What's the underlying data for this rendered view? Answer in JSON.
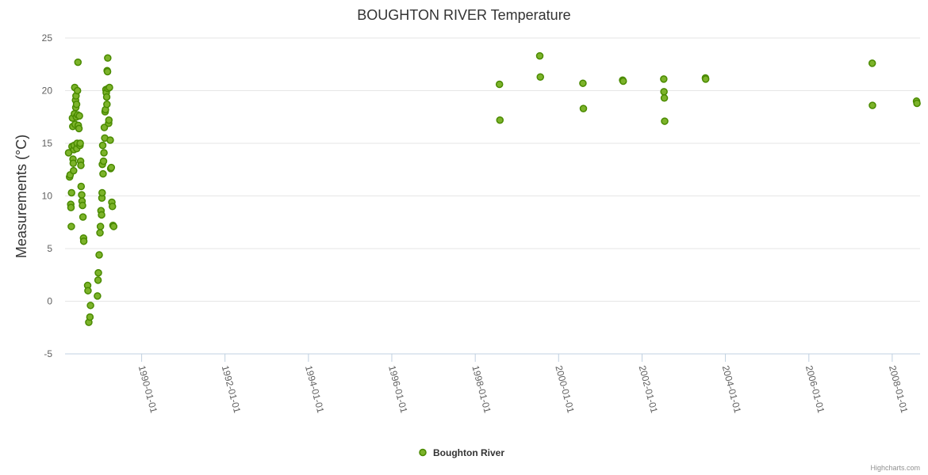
{
  "chart": {
    "title": "BOUGHTON RIVER Temperature",
    "credits": "Highcharts.com",
    "legend_position": "bottom-center",
    "colors": {
      "point_fill": "#7cb32a",
      "point_stroke": "#4a8a00",
      "grid": "#e6e6e6",
      "axis": "#c0d0e0"
    }
  },
  "chart_data": {
    "type": "scatter",
    "title": "BOUGHTON RIVER Temperature",
    "xlabel": "",
    "ylabel": "Measurements (°C)",
    "ylim": [
      -5,
      25
    ],
    "y_ticks": [
      -5,
      0,
      5,
      10,
      15,
      20,
      25
    ],
    "xlim": [
      "1988-03-01",
      "2008-09-01"
    ],
    "x_ticks": [
      "1990-01-01",
      "1992-01-01",
      "1994-01-01",
      "1996-01-01",
      "1998-01-01",
      "2000-01-01",
      "2002-01-01",
      "2004-01-01",
      "2006-01-01",
      "2008-01-01"
    ],
    "grid": true,
    "series": [
      {
        "name": "Boughton River",
        "points": [
          [
            "1988-04-01",
            14.1
          ],
          [
            "1988-04-10",
            11.8
          ],
          [
            "1988-04-15",
            12.0
          ],
          [
            "1988-04-20",
            9.2
          ],
          [
            "1988-04-22",
            8.9
          ],
          [
            "1988-04-25",
            7.1
          ],
          [
            "1988-04-27",
            10.3
          ],
          [
            "1988-05-01",
            14.7
          ],
          [
            "1988-05-05",
            17.4
          ],
          [
            "1988-05-08",
            16.6
          ],
          [
            "1988-05-10",
            13.5
          ],
          [
            "1988-05-12",
            13.1
          ],
          [
            "1988-05-15",
            12.4
          ],
          [
            "1988-05-18",
            14.4
          ],
          [
            "1988-05-20",
            14.8
          ],
          [
            "1988-05-22",
            17.8
          ],
          [
            "1988-05-25",
            20.3
          ],
          [
            "1988-05-28",
            16.8
          ],
          [
            "1988-06-01",
            19.1
          ],
          [
            "1988-06-03",
            18.4
          ],
          [
            "1988-06-05",
            19.5
          ],
          [
            "1988-06-08",
            17.5
          ],
          [
            "1988-06-10",
            18.7
          ],
          [
            "1988-06-12",
            14.5
          ],
          [
            "1988-06-15",
            15.0
          ],
          [
            "1988-06-18",
            20.0
          ],
          [
            "1988-06-20",
            17.7
          ],
          [
            "1988-06-22",
            22.7
          ],
          [
            "1988-06-25",
            16.7
          ],
          [
            "1988-07-01",
            16.4
          ],
          [
            "1988-07-05",
            17.6
          ],
          [
            "1988-07-10",
            14.8
          ],
          [
            "1988-07-12",
            15.0
          ],
          [
            "1988-07-15",
            13.3
          ],
          [
            "1988-07-18",
            12.9
          ],
          [
            "1988-07-20",
            10.9
          ],
          [
            "1988-07-25",
            10.1
          ],
          [
            "1988-07-28",
            9.5
          ],
          [
            "1988-08-01",
            9.1
          ],
          [
            "1988-08-05",
            8.0
          ],
          [
            "1988-08-10",
            6.0
          ],
          [
            "1988-08-12",
            5.7
          ],
          [
            "1988-09-15",
            1.5
          ],
          [
            "1988-09-18",
            1.0
          ],
          [
            "1988-09-25",
            -2.0
          ],
          [
            "1988-10-05",
            -1.5
          ],
          [
            "1988-10-10",
            -0.4
          ],
          [
            "1988-12-10",
            0.5
          ],
          [
            "1988-12-15",
            2.0
          ],
          [
            "1988-12-18",
            2.7
          ],
          [
            "1988-12-25",
            4.4
          ],
          [
            "1989-01-01",
            6.5
          ],
          [
            "1989-01-05",
            7.1
          ],
          [
            "1989-01-10",
            8.6
          ],
          [
            "1989-01-15",
            8.2
          ],
          [
            "1989-01-18",
            9.8
          ],
          [
            "1989-01-20",
            10.3
          ],
          [
            "1989-01-22",
            13.0
          ],
          [
            "1989-01-25",
            14.8
          ],
          [
            "1989-01-28",
            12.1
          ],
          [
            "1989-02-01",
            13.3
          ],
          [
            "1989-02-05",
            14.1
          ],
          [
            "1989-02-08",
            16.5
          ],
          [
            "1989-02-12",
            15.5
          ],
          [
            "1989-02-15",
            18.0
          ],
          [
            "1989-02-18",
            18.2
          ],
          [
            "1989-02-22",
            20.1
          ],
          [
            "1989-02-25",
            19.8
          ],
          [
            "1989-03-01",
            19.4
          ],
          [
            "1989-03-03",
            18.7
          ],
          [
            "1989-03-05",
            21.9
          ],
          [
            "1989-03-08",
            21.8
          ],
          [
            "1989-03-10",
            23.1
          ],
          [
            "1989-03-12",
            20.2
          ],
          [
            "1989-03-18",
            16.9
          ],
          [
            "1989-03-20",
            17.2
          ],
          [
            "1989-03-25",
            20.3
          ],
          [
            "1989-04-01",
            15.3
          ],
          [
            "1989-04-05",
            12.6
          ],
          [
            "1989-04-10",
            12.7
          ],
          [
            "1989-04-15",
            9.4
          ],
          [
            "1989-04-20",
            9.0
          ],
          [
            "1989-04-25",
            7.2
          ],
          [
            "1989-05-01",
            7.1
          ],
          [
            "1998-08-01",
            20.6
          ],
          [
            "1998-08-05",
            17.2
          ],
          [
            "1999-07-20",
            23.3
          ],
          [
            "1999-07-25",
            21.3
          ],
          [
            "2000-08-01",
            20.7
          ],
          [
            "2000-08-05",
            18.3
          ],
          [
            "2001-07-15",
            21.0
          ],
          [
            "2001-07-20",
            20.9
          ],
          [
            "2002-07-10",
            21.1
          ],
          [
            "2002-07-12",
            19.9
          ],
          [
            "2002-07-15",
            19.3
          ],
          [
            "2002-07-18",
            17.1
          ],
          [
            "2003-07-10",
            21.2
          ],
          [
            "2003-07-12",
            21.1
          ],
          [
            "2007-07-10",
            22.6
          ],
          [
            "2007-07-12",
            18.6
          ],
          [
            "2008-08-01",
            19.0
          ],
          [
            "2008-08-05",
            18.8
          ]
        ]
      }
    ]
  }
}
